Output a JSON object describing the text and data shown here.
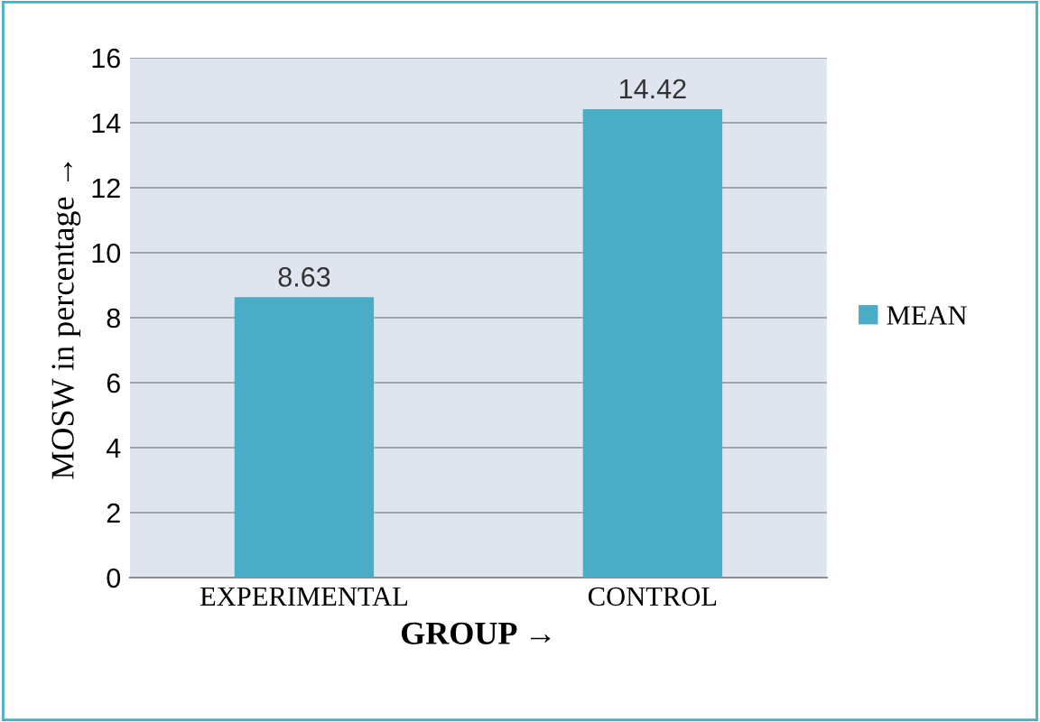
{
  "chart_data": {
    "type": "bar",
    "xlabel": "GROUP →",
    "ylabel": "MOSW in percentage →",
    "categories": [
      "EXPERIMENTAL",
      "CONTROL"
    ],
    "series": [
      {
        "name": "MEAN",
        "color": "#4bacc6",
        "values": [
          8.63,
          14.42
        ]
      }
    ],
    "ylim": [
      0,
      16
    ],
    "yticks": [
      0,
      2,
      4,
      6,
      8,
      10,
      12,
      14,
      16
    ],
    "grid": "y",
    "legend": "right",
    "data_labels": true
  }
}
